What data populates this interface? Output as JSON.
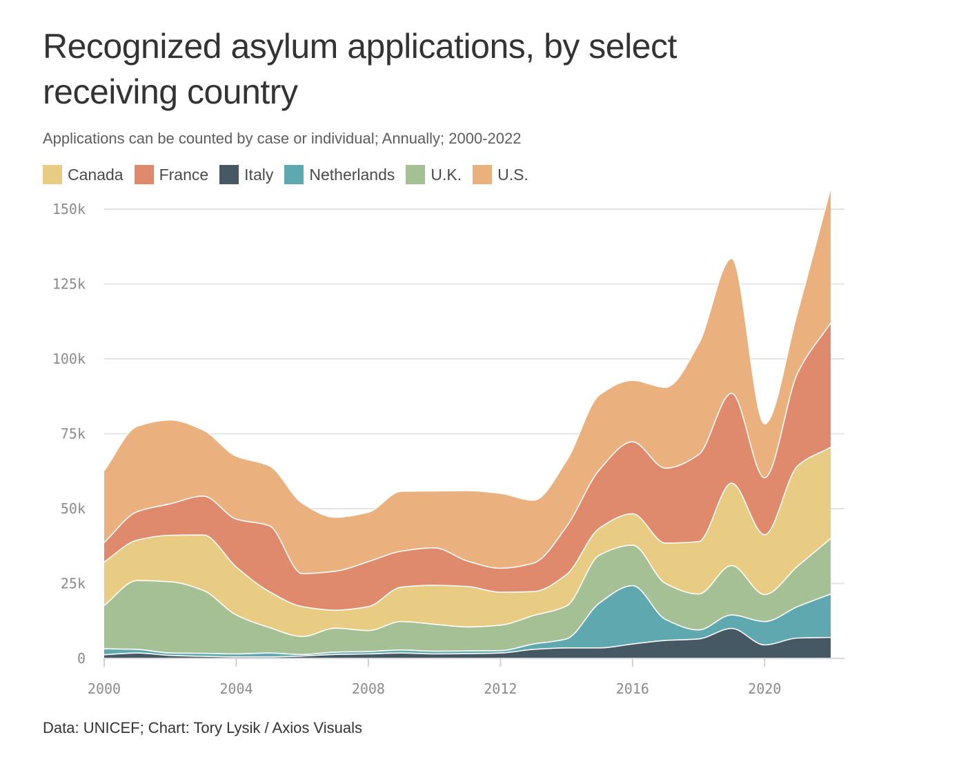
{
  "title": "Recognized asylum applications, by select receiving country",
  "subtitle": "Applications can be counted by case or individual; Annually; 2000-2022",
  "source": "Data: UNICEF; Chart: Tory Lysik / Axios Visuals",
  "legend": [
    {
      "name": "Canada",
      "color": "#e9cc83"
    },
    {
      "name": "France",
      "color": "#df8a6c"
    },
    {
      "name": "Italy",
      "color": "#455863"
    },
    {
      "name": "Netherlands",
      "color": "#5fa8b0"
    },
    {
      "name": "U.K.",
      "color": "#a4c094"
    },
    {
      "name": "U.S.",
      "color": "#eab07e"
    }
  ],
  "chart_data": {
    "type": "area",
    "stacked": true,
    "x": [
      2000,
      2001,
      2002,
      2003,
      2004,
      2005,
      2006,
      2007,
      2008,
      2009,
      2010,
      2011,
      2012,
      2013,
      2014,
      2015,
      2016,
      2017,
      2018,
      2019,
      2020,
      2021,
      2022
    ],
    "series": [
      {
        "name": "Italy",
        "color": "#455863",
        "values": [
          1200,
          1800,
          1000,
          700,
          500,
          500,
          800,
          1300,
          1500,
          1800,
          1500,
          1600,
          1800,
          3000,
          3500,
          3500,
          4800,
          6000,
          6500,
          10000,
          4500,
          6800,
          7000
        ]
      },
      {
        "name": "Netherlands",
        "color": "#5fa8b0",
        "values": [
          2000,
          1200,
          800,
          1000,
          1000,
          1300,
          500,
          800,
          800,
          1000,
          900,
          900,
          800,
          1800,
          3000,
          15000,
          19500,
          7000,
          3000,
          4500,
          7800,
          10500,
          14500
        ]
      },
      {
        "name": "U.K.",
        "color": "#a4c094",
        "values": [
          14500,
          23000,
          23800,
          21000,
          13000,
          8500,
          6000,
          8000,
          7000,
          9500,
          9000,
          8000,
          8500,
          9500,
          11000,
          16000,
          13500,
          12000,
          12000,
          16500,
          9000,
          13500,
          18500
        ]
      },
      {
        "name": "Canada",
        "color": "#e9cc83",
        "values": [
          14500,
          13500,
          15500,
          18500,
          16000,
          12000,
          10000,
          6000,
          8000,
          11500,
          13000,
          13500,
          11000,
          8000,
          10500,
          9000,
          10500,
          13500,
          17500,
          27500,
          20000,
          33500,
          30500
        ]
      },
      {
        "name": "France",
        "color": "#df8a6c",
        "values": [
          6500,
          9500,
          10500,
          13000,
          16000,
          22000,
          11000,
          13000,
          15000,
          12000,
          12500,
          8500,
          8000,
          9500,
          16000,
          19500,
          24000,
          25000,
          29000,
          30000,
          19000,
          31000,
          41500
        ]
      },
      {
        "name": "U.S.",
        "color": "#eab07e",
        "values": [
          24000,
          28500,
          28000,
          22000,
          21000,
          20000,
          23500,
          18000,
          16500,
          20000,
          19000,
          23500,
          25000,
          21000,
          22000,
          25000,
          20500,
          27000,
          37000,
          45000,
          18000,
          20500,
          45000
        ]
      }
    ],
    "xlim": [
      2000,
      2022
    ],
    "ylim": [
      0,
      150000
    ],
    "x_ticks": [
      {
        "value": 2000,
        "label": "2000"
      },
      {
        "value": 2004,
        "label": "2004"
      },
      {
        "value": 2008,
        "label": "2008"
      },
      {
        "value": 2012,
        "label": "2012"
      },
      {
        "value": 2016,
        "label": "2016"
      },
      {
        "value": 2020,
        "label": "2020"
      }
    ],
    "y_ticks": [
      {
        "value": 0,
        "label": "0"
      },
      {
        "value": 25000,
        "label": "25k"
      },
      {
        "value": 50000,
        "label": "50k"
      },
      {
        "value": 75000,
        "label": "75k"
      },
      {
        "value": 100000,
        "label": "100k"
      },
      {
        "value": 125000,
        "label": "125k"
      },
      {
        "value": 150000,
        "label": "150k"
      }
    ],
    "grid": true,
    "legend_position": "top-left"
  }
}
